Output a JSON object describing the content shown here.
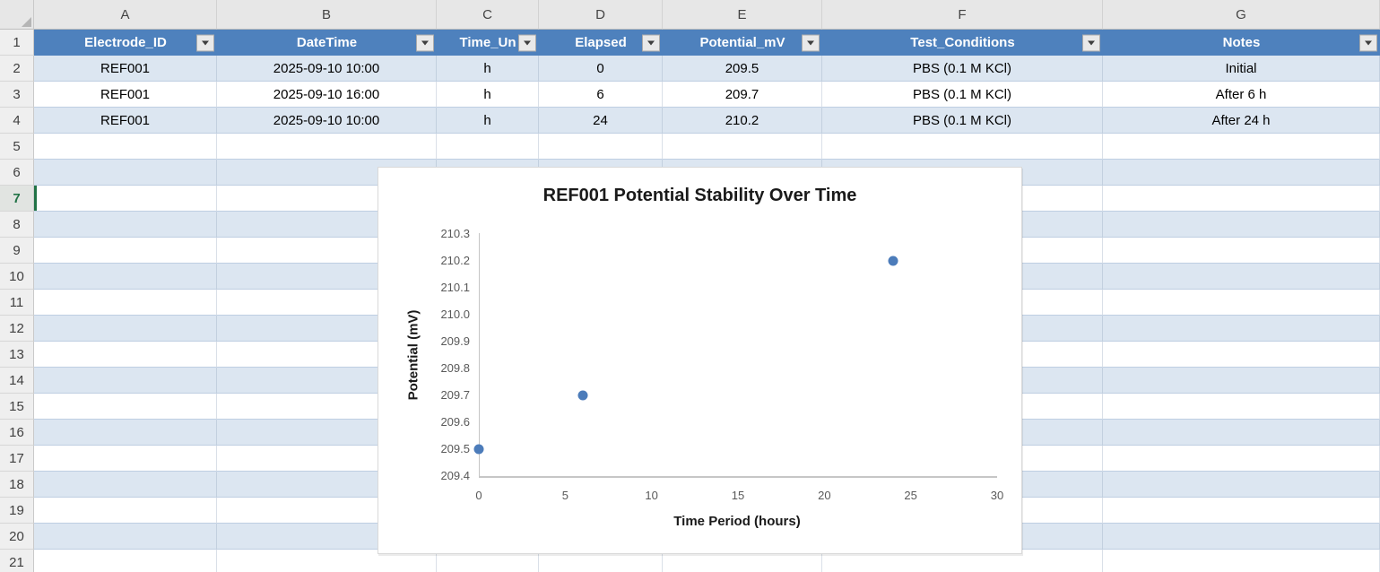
{
  "sheet": {
    "column_letters": [
      "A",
      "B",
      "C",
      "D",
      "E",
      "F",
      "G"
    ],
    "row_numbers": [
      1,
      2,
      3,
      4,
      5,
      6,
      7,
      8,
      9,
      10,
      11,
      12,
      13,
      14,
      15,
      16,
      17,
      18,
      19,
      20,
      21
    ],
    "selected_cell": {
      "row": 7,
      "column": "A"
    },
    "table": {
      "headers": [
        "Electrode_ID",
        "DateTime",
        "Time_Un",
        "Elapsed",
        "Potential_mV",
        "Test_Conditions",
        "Notes"
      ],
      "rows": [
        [
          "REF001",
          "2025-09-10 10:00",
          "h",
          "0",
          "209.5",
          "PBS (0.1 M KCl)",
          "Initial"
        ],
        [
          "REF001",
          "2025-09-10 16:00",
          "h",
          "6",
          "209.7",
          "PBS (0.1 M KCl)",
          "After 6 h"
        ],
        [
          "REF001",
          "2025-09-10 10:00",
          "h",
          "24",
          "210.2",
          "PBS (0.1 M KCl)",
          "After 24 h"
        ]
      ]
    }
  },
  "chart_data": {
    "type": "scatter",
    "title": "REF001 Potential Stability Over Time",
    "xlabel": "Time Period (hours)",
    "ylabel": "Potential (mV)",
    "x": [
      0,
      6,
      24
    ],
    "y": [
      209.5,
      209.7,
      210.2
    ],
    "xlim": [
      0,
      30
    ],
    "ylim": [
      209.4,
      210.3
    ],
    "xticks": [
      0,
      5,
      10,
      15,
      20,
      25,
      30
    ],
    "ytick_labels": [
      "209.4",
      "209.5",
      "209.6",
      "209.7",
      "209.8",
      "209.9",
      "210.0",
      "210.1",
      "210.2",
      "210.3"
    ],
    "grid": false,
    "legend": false,
    "marker_color": "#4C7CBA"
  },
  "colors": {
    "table_header_fill": "#4E81BD",
    "band_fill": "#DCE6F1",
    "selection_green": "#217346",
    "marker_blue": "#4C7CBA",
    "axis_gray": "#C6C6C6",
    "tick_text": "#595959"
  }
}
